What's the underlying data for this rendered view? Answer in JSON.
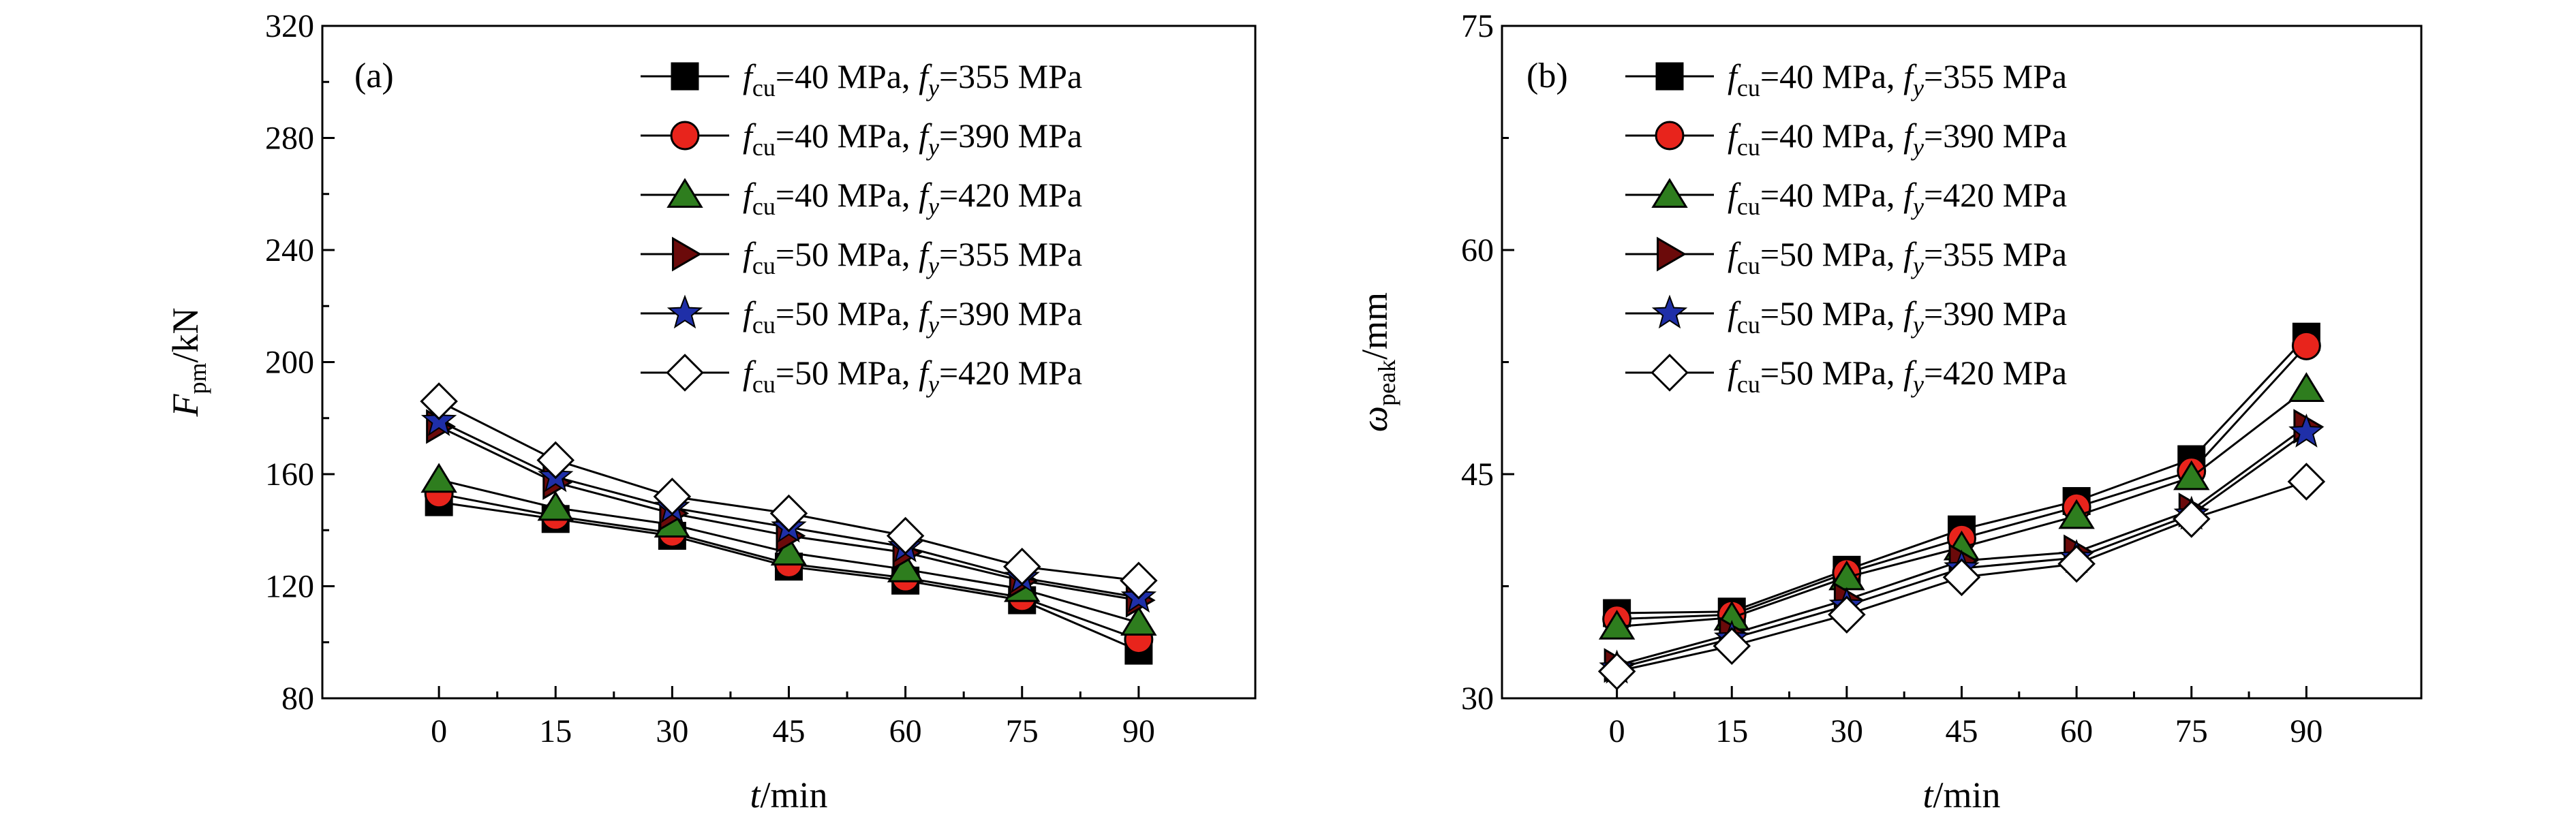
{
  "chart_data": [
    {
      "type": "line",
      "panel_label": "(a)",
      "xlabel": {
        "var": "t",
        "unit": "/min"
      },
      "ylabel": {
        "var": "F",
        "sub": "pm",
        "unit": "/kN"
      },
      "x": [
        0,
        15,
        30,
        45,
        60,
        75,
        90
      ],
      "xlim": [
        -15,
        105
      ],
      "ylim": [
        80,
        320
      ],
      "yticks": [
        80,
        120,
        160,
        200,
        240,
        280,
        320
      ],
      "grid": false,
      "legend_position": "top-right",
      "series": [
        {
          "name": "fcu=40 MPa, fy=355 MPa",
          "fcu": "40",
          "fy": "355",
          "marker": "square",
          "color": "#000000",
          "values": [
            150,
            144,
            138,
            127,
            122,
            115,
            97
          ]
        },
        {
          "name": "fcu=40 MPa, fy=390 MPa",
          "fcu": "40",
          "fy": "390",
          "marker": "circle",
          "color": "#e8241c",
          "values": [
            153,
            145,
            139,
            128,
            123,
            116,
            101
          ]
        },
        {
          "name": "fcu=40 MPa, fy=420 MPa",
          "fcu": "40",
          "fy": "420",
          "marker": "triangle-up",
          "color": "#2e7d1e",
          "values": [
            158,
            148,
            142,
            132,
            126,
            119,
            107
          ]
        },
        {
          "name": "fcu=50 MPa, fy=355 MPa",
          "fcu": "50",
          "fy": "355",
          "marker": "triangle-right",
          "color": "#6b0a0a",
          "values": [
            177,
            157,
            146,
            138,
            132,
            122,
            115
          ]
        },
        {
          "name": "fcu=50 MPa, fy=390 MPa",
          "fcu": "50",
          "fy": "390",
          "marker": "star",
          "color": "#1f2fa8",
          "values": [
            179,
            159,
            148,
            141,
            134,
            123,
            116
          ]
        },
        {
          "name": "fcu=50 MPa, fy=420 MPa",
          "fcu": "50",
          "fy": "420",
          "marker": "diamond",
          "color": "#ffffff",
          "values": [
            186,
            165,
            152,
            146,
            138,
            127,
            122
          ]
        }
      ]
    },
    {
      "type": "line",
      "panel_label": "(b)",
      "xlabel": {
        "var": "t",
        "unit": "/min"
      },
      "ylabel": {
        "var": "ω",
        "sub": "peak",
        "unit": "/mm"
      },
      "x": [
        0,
        15,
        30,
        45,
        60,
        75,
        90
      ],
      "xlim": [
        -15,
        105
      ],
      "ylim": [
        30,
        75
      ],
      "yticks": [
        30,
        45,
        60,
        75
      ],
      "grid": false,
      "legend_position": "top-left",
      "series": [
        {
          "name": "fcu=40 MPa, fy=355 MPa",
          "fcu": "40",
          "fy": "355",
          "marker": "square",
          "color": "#000000",
          "values": [
            35.7,
            35.8,
            38.6,
            41.3,
            43.2,
            46.0,
            54.2
          ]
        },
        {
          "name": "fcu=40 MPa, fy=390 MPa",
          "fcu": "40",
          "fy": "390",
          "marker": "circle",
          "color": "#e8241c",
          "values": [
            35.3,
            35.6,
            38.4,
            40.7,
            42.8,
            45.2,
            53.6
          ]
        },
        {
          "name": "fcu=40 MPa, fy=420 MPa",
          "fcu": "40",
          "fy": "420",
          "marker": "triangle-up",
          "color": "#2e7d1e",
          "values": [
            34.8,
            35.4,
            38.1,
            40.1,
            42.2,
            44.8,
            50.7
          ]
        },
        {
          "name": "fcu=50 MPa, fy=355 MPa",
          "fcu": "50",
          "fy": "355",
          "marker": "triangle-right",
          "color": "#6b0a0a",
          "values": [
            32.2,
            34.3,
            36.6,
            39.2,
            39.8,
            42.6,
            48.2
          ]
        },
        {
          "name": "fcu=50 MPa, fy=390 MPa",
          "fcu": "50",
          "fy": "390",
          "marker": "star",
          "color": "#1f2fa8",
          "values": [
            32.0,
            34.0,
            36.2,
            38.7,
            39.4,
            42.3,
            47.8
          ]
        },
        {
          "name": "fcu=50 MPa, fy=420 MPa",
          "fcu": "50",
          "fy": "420",
          "marker": "diamond",
          "color": "#ffffff",
          "values": [
            31.8,
            33.5,
            35.6,
            38.1,
            39.0,
            42.0,
            44.5
          ]
        }
      ]
    }
  ]
}
